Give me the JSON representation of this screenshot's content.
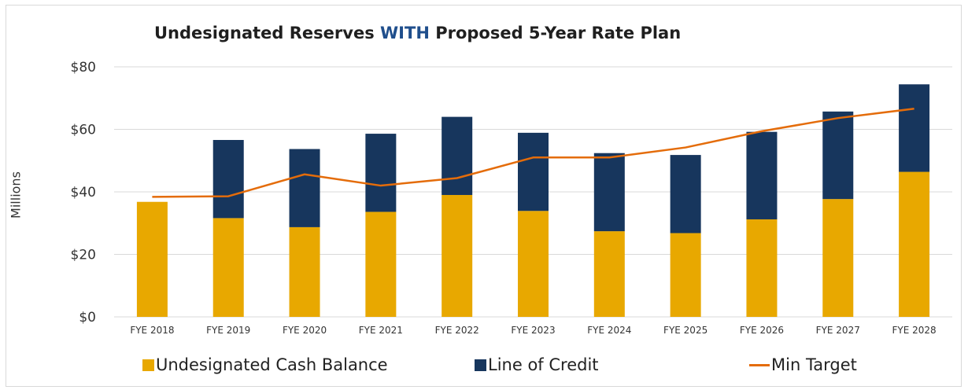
{
  "chart_data": {
    "type": "bar",
    "title_parts": [
      "Undesignated Reserves ",
      "WITH",
      " Proposed 5-Year Rate Plan"
    ],
    "ylabel": "Millions",
    "ylim": [
      0,
      80
    ],
    "yticks": [
      0,
      20,
      40,
      60,
      80
    ],
    "ytick_labels": [
      "$0",
      "$20",
      "$40",
      "$60",
      "$80"
    ],
    "categories": [
      "FYE 2018",
      "FYE 2019",
      "FYE 2020",
      "FYE 2021",
      "FYE 2022",
      "FYE 2023",
      "FYE 2024",
      "FYE 2025",
      "FYE 2026",
      "FYE 2027",
      "FYE 2028"
    ],
    "stacked": true,
    "series": [
      {
        "name": "Undesignated Cash Balance",
        "kind": "bar",
        "color": "#e8a800",
        "values": [
          36.8,
          31.6,
          28.7,
          33.6,
          39.0,
          33.9,
          27.4,
          26.8,
          31.2,
          37.7,
          46.4
        ]
      },
      {
        "name": "Line of Credit",
        "kind": "bar",
        "color": "#17365d",
        "values": [
          0,
          25.0,
          25.0,
          25.0,
          25.0,
          25.0,
          25.0,
          25.0,
          28.0,
          28.0,
          28.0
        ]
      },
      {
        "name": "Min Target",
        "kind": "line",
        "color": "#e46c0a",
        "values": [
          38.4,
          38.6,
          45.6,
          42.0,
          44.4,
          51.0,
          51.0,
          54.2,
          59.4,
          63.6,
          66.6
        ]
      }
    ],
    "grid": "horizontal",
    "legend": "bottom"
  }
}
